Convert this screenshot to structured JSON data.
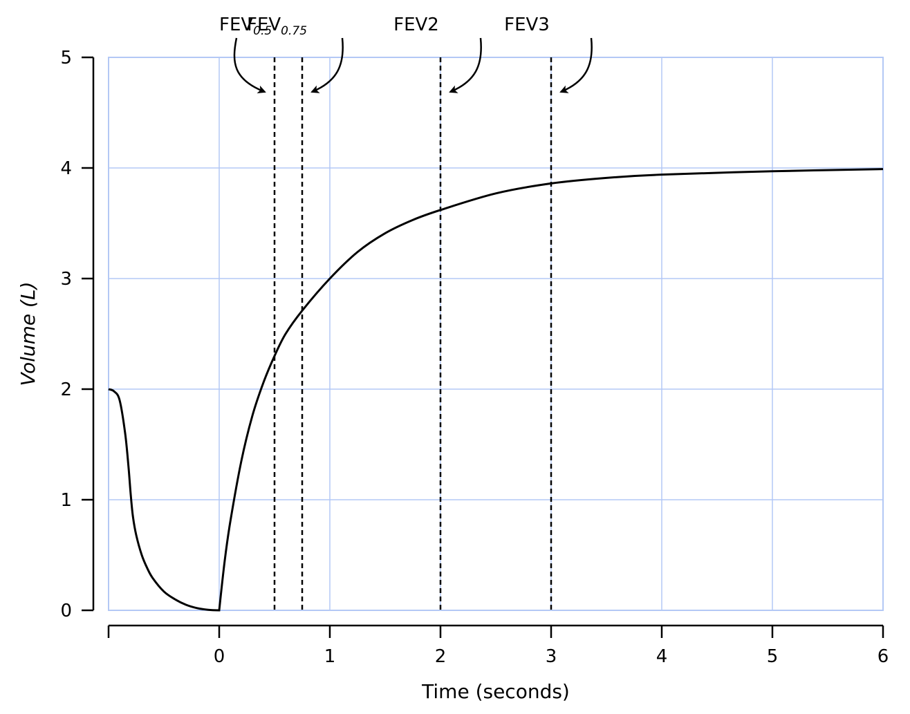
{
  "chart_data": {
    "type": "line",
    "xlabel": "Time (seconds)",
    "ylabel": "Volume (L)",
    "xlim": [
      -1,
      6
    ],
    "ylim": [
      0,
      5
    ],
    "x_ticks": [
      "0",
      "1",
      "2",
      "3",
      "4",
      "5",
      "6"
    ],
    "y_ticks": [
      "0",
      "1",
      "2",
      "3",
      "4",
      "5"
    ],
    "grid": true,
    "series": [
      {
        "x": [
          -1.0,
          -0.95,
          -0.9,
          -0.85,
          -0.82,
          -0.8,
          -0.78,
          -0.75,
          -0.7,
          -0.65,
          -0.6,
          -0.5,
          -0.4,
          -0.3,
          -0.2,
          -0.1,
          0.0,
          0.05,
          0.1,
          0.2,
          0.3,
          0.4,
          0.5,
          0.6,
          0.75,
          1.0,
          1.25,
          1.5,
          1.75,
          2.0,
          2.5,
          3.0,
          3.5,
          4.0,
          5.0,
          6.0
        ],
        "y": [
          2.0,
          1.98,
          1.9,
          1.6,
          1.3,
          1.05,
          0.85,
          0.68,
          0.5,
          0.38,
          0.29,
          0.17,
          0.1,
          0.05,
          0.02,
          0.005,
          0.0,
          0.45,
          0.8,
          1.35,
          1.76,
          2.06,
          2.3,
          2.5,
          2.71,
          3.0,
          3.24,
          3.41,
          3.53,
          3.62,
          3.77,
          3.86,
          3.91,
          3.94,
          3.97,
          3.99
        ]
      }
    ],
    "markers": [
      {
        "x": 0.5,
        "label": "FEV",
        "sub": "0.5"
      },
      {
        "x": 0.75,
        "label": "FEV",
        "sub": "0.75"
      },
      {
        "x": 2,
        "label": "FEV2",
        "sub": ""
      },
      {
        "x": 3,
        "label": "FEV3",
        "sub": ""
      }
    ],
    "colors": {
      "grid": "#b3c8f5",
      "line": "#000000",
      "axis": "#000000"
    }
  }
}
